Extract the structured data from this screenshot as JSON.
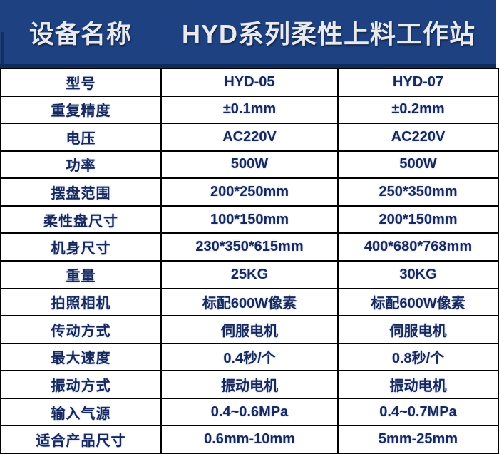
{
  "header": {
    "equipment_label": "设备名称",
    "title": "HYD系列柔性上料工作站"
  },
  "colors": {
    "header_bg": "#1e4182",
    "header_band": "#0e2b5c",
    "header_text": "#e9eaee",
    "cell_text": "#17285c",
    "grid_line": "#000000",
    "cell_bg": "#ffffff"
  },
  "table": {
    "rows": [
      {
        "label": "型号",
        "col1": "HYD-05",
        "col2": "HYD-07"
      },
      {
        "label": "重复精度",
        "col1": "±0.1mm",
        "col2": "±0.2mm"
      },
      {
        "label": "电压",
        "col1": "AC220V",
        "col2": "AC220V"
      },
      {
        "label": "功率",
        "col1": "500W",
        "col2": "500W"
      },
      {
        "label": "摆盘范围",
        "col1": "200*250mm",
        "col2": "250*350mm"
      },
      {
        "label": "柔性盘尺寸",
        "col1": "100*150mm",
        "col2": "200*150mm"
      },
      {
        "label": "机身尺寸",
        "col1": "230*350*615mm",
        "col2": "400*680*768mm"
      },
      {
        "label": "重量",
        "col1": "25KG",
        "col2": "30KG"
      },
      {
        "label": "拍照相机",
        "col1": "标配600W像素",
        "col2": "标配600W像素"
      },
      {
        "label": "传动方式",
        "col1": "伺服电机",
        "col2": "伺服电机"
      },
      {
        "label": "最大速度",
        "col1": "0.4秒/个",
        "col2": "0.8秒/个"
      },
      {
        "label": "振动方式",
        "col1": "振动电机",
        "col2": "振动电机"
      },
      {
        "label": "输入气源",
        "col1": "0.4~0.6MPa",
        "col2": "0.4~0.7MPa"
      },
      {
        "label": "适合产品尺寸",
        "col1": "0.6mm-10mm",
        "col2": "5mm-25mm"
      }
    ]
  }
}
